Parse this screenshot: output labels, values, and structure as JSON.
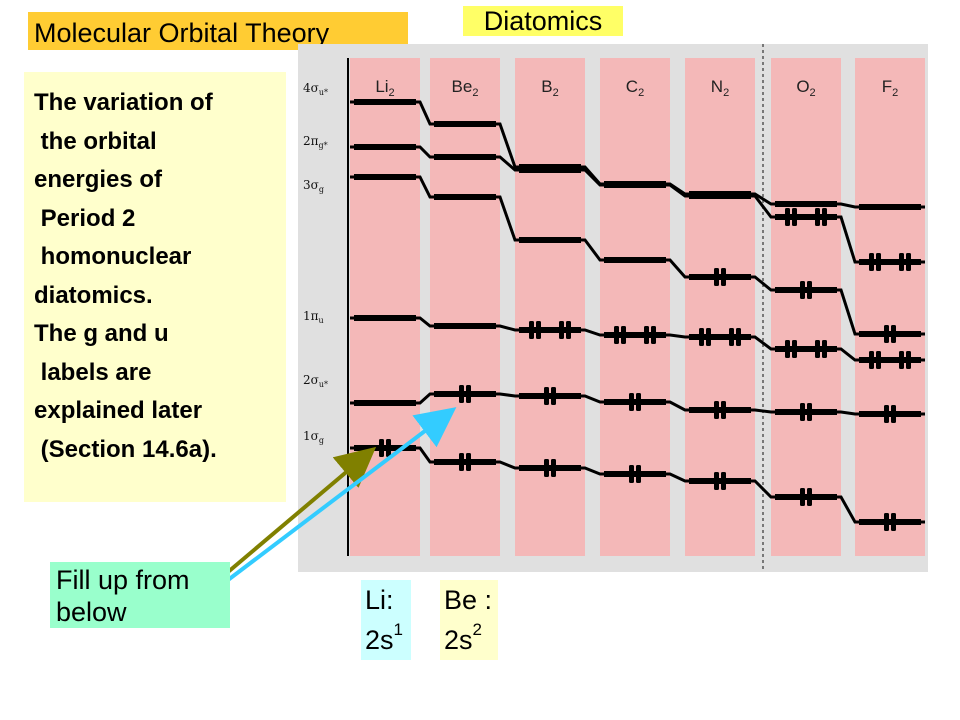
{
  "header": {
    "title": "Molecular Orbital Theory",
    "subtitle": "Diatomics"
  },
  "description": {
    "lines": [
      "The variation of",
      " the orbital",
      "energies of",
      " Period 2",
      " homonuclear",
      "diatomics.",
      "The g and u",
      " labels are",
      "explained later",
      " (Section 14.6a)."
    ]
  },
  "note": {
    "line1": "Fill up from",
    "line2": "below"
  },
  "config_boxes": {
    "li": {
      "label": "Li:",
      "config": "2s",
      "superscript": "1"
    },
    "be": {
      "label": "Be :",
      "config": "2s",
      "superscript": "2"
    }
  },
  "diagram": {
    "molecules": [
      "Li",
      "Be",
      "B",
      "C",
      "N",
      "O",
      "F"
    ],
    "subscript": "2",
    "orbital_labels": [
      {
        "base": "4σ",
        "sub": "u*"
      },
      {
        "base": "2π",
        "sub": "g*"
      },
      {
        "base": "3σ",
        "sub": "g"
      },
      {
        "base": "1π",
        "sub": "u"
      },
      {
        "base": "2σ",
        "sub": "u*"
      },
      {
        "base": "1σ",
        "sub": "g"
      }
    ],
    "colors": {
      "panel": "#e0e0e0",
      "column": "#f4b8b8",
      "level": "#000000",
      "arrow_olive": "#808000",
      "arrow_cyan": "#33ccff"
    }
  }
}
